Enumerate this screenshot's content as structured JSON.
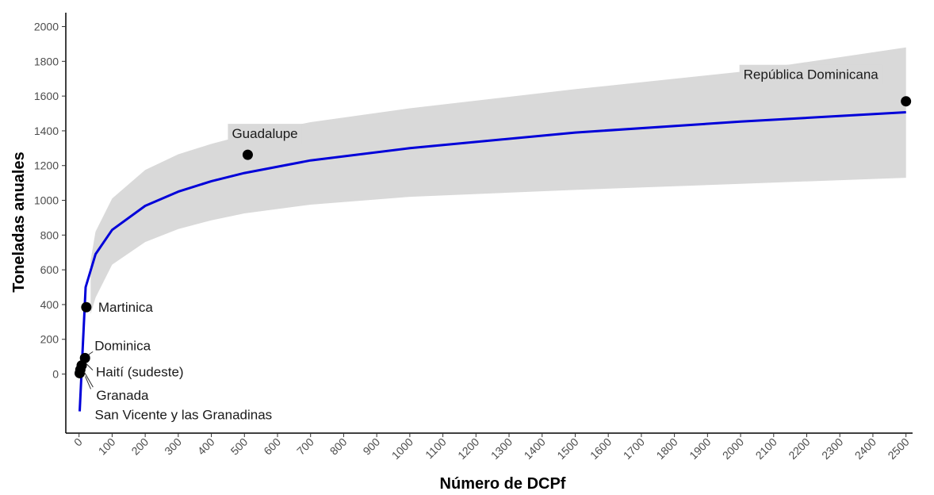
{
  "chart_data": {
    "type": "scatter",
    "title": "",
    "xlabel": "Número de DCPf",
    "ylabel": "Toneladas anuales",
    "xlim": [
      -40,
      2520
    ],
    "ylim": [
      -340,
      2080
    ],
    "xticks": [
      0,
      100,
      200,
      300,
      400,
      500,
      600,
      700,
      800,
      900,
      1000,
      1100,
      1200,
      1300,
      1400,
      1500,
      1600,
      1700,
      1800,
      1900,
      2000,
      2100,
      2200,
      2300,
      2400,
      2500
    ],
    "yticks": [
      0,
      200,
      400,
      600,
      800,
      1000,
      1200,
      1400,
      1600,
      1800,
      2000
    ],
    "grid": false,
    "legend": "none",
    "colors": {
      "fit_line": "#0000d9",
      "confidence_band": "#d9d9d9",
      "points": "#000000",
      "label_box": "#d9d9d9"
    },
    "points": [
      {
        "label": "República Dominicana",
        "x": 2500,
        "y": 1570,
        "boxed": true
      },
      {
        "label": "Guadalupe",
        "x": 510,
        "y": 1262,
        "boxed": true
      },
      {
        "label": "Martinica",
        "x": 22,
        "y": 385,
        "boxed": false
      },
      {
        "label": "Dominica",
        "x": 18,
        "y": 92,
        "boxed": false
      },
      {
        "label": "Haití (sudeste)",
        "x": 8,
        "y": 50,
        "boxed": false
      },
      {
        "label": "Granada",
        "x": 4,
        "y": 25,
        "boxed": false
      },
      {
        "label": "San Vicente y las Granadinas",
        "x": 2,
        "y": 5,
        "boxed": false
      }
    ],
    "fit": {
      "x": [
        2,
        20,
        50,
        100,
        200,
        300,
        400,
        500,
        700,
        1000,
        1500,
        2000,
        2500
      ],
      "y": [
        -215,
        500,
        690,
        830,
        968,
        1050,
        1110,
        1157,
        1230,
        1300,
        1390,
        1453,
        1507
      ]
    },
    "band": {
      "x": [
        35,
        50,
        100,
        200,
        300,
        400,
        500,
        700,
        1000,
        1500,
        2000,
        2500
      ],
      "upper": [
        655,
        820,
        1010,
        1175,
        1265,
        1325,
        1375,
        1450,
        1530,
        1640,
        1740,
        1880
      ],
      "lower": [
        345,
        440,
        630,
        760,
        835,
        885,
        925,
        975,
        1020,
        1060,
        1095,
        1130
      ]
    }
  }
}
